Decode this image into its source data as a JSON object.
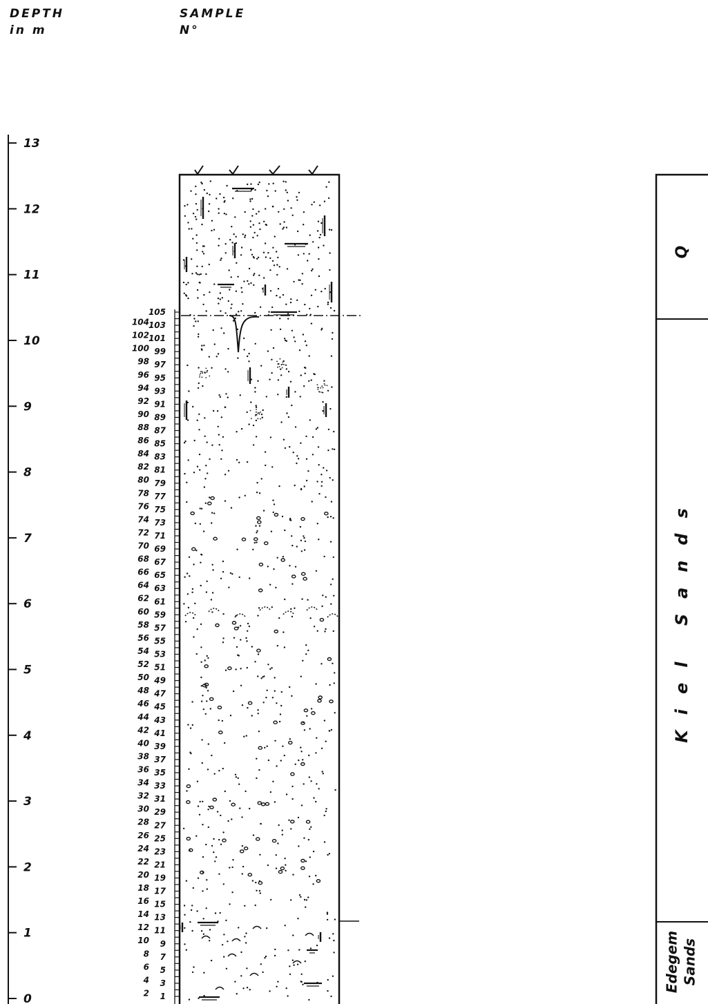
{
  "header": {
    "depth_label_line1": "DEPTH",
    "depth_label_line2": "in m",
    "sample_label_line1": "SAMPLE",
    "sample_label_line2": "N°"
  },
  "depth_axis": {
    "ticks": [
      "13",
      "12",
      "11",
      "10",
      "9",
      "8",
      "7",
      "6",
      "5",
      "4",
      "3",
      "2",
      "1",
      "0"
    ]
  },
  "samples": {
    "left_numbers": [
      "104",
      "102",
      "100",
      "98",
      "96",
      "94",
      "92",
      "90",
      "88",
      "86",
      "84",
      "82",
      "80",
      "78",
      "76",
      "74",
      "72",
      "70",
      "68",
      "66",
      "64",
      "62",
      "60",
      "58",
      "56",
      "54",
      "52",
      "50",
      "48",
      "46",
      "44",
      "42",
      "40",
      "38",
      "36",
      "34",
      "32",
      "30",
      "28",
      "26",
      "24",
      "22",
      "20",
      "18",
      "16",
      "14",
      "12",
      "10",
      "8",
      "6",
      "4",
      "2"
    ],
    "right_numbers": [
      "105",
      "103",
      "101",
      "99",
      "97",
      "95",
      "93",
      "91",
      "89",
      "87",
      "85",
      "83",
      "81",
      "79",
      "77",
      "75",
      "73",
      "71",
      "69",
      "67",
      "65",
      "63",
      "61",
      "59",
      "57",
      "55",
      "53",
      "51",
      "49",
      "47",
      "45",
      "43",
      "41",
      "39",
      "37",
      "35",
      "33",
      "31",
      "29",
      "27",
      "25",
      "23",
      "21",
      "19",
      "17",
      "15",
      "13",
      "11",
      "9",
      "7",
      "5",
      "3",
      "1"
    ]
  },
  "formations": [
    {
      "name": "Q"
    },
    {
      "name": "Kiel Sands"
    },
    {
      "name_line1": "Edegem",
      "name_line2": "Sands"
    }
  ],
  "colors": {
    "ink": "#111111",
    "background": "#ffffff"
  }
}
